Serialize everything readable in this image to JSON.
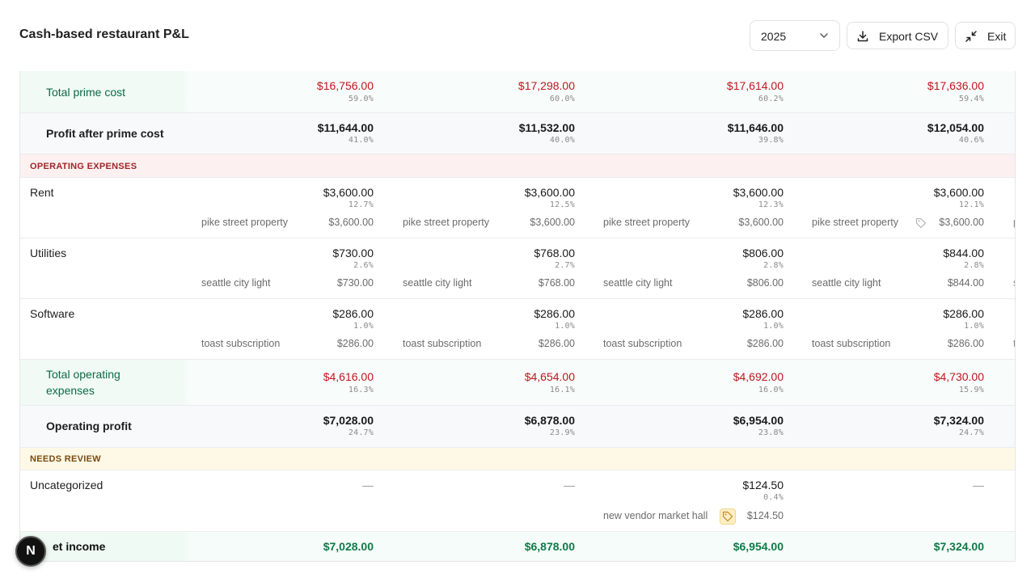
{
  "header": {
    "title": "Cash-based restaurant P&L",
    "year": "2025",
    "export_label": "Export CSV",
    "exit_label": "Exit"
  },
  "rows": {
    "prime": {
      "label": "Total prime cost",
      "cols": [
        {
          "amount": "$16,756.00",
          "pct": "59.0%"
        },
        {
          "amount": "$17,298.00",
          "pct": "60.0%"
        },
        {
          "amount": "$17,614.00",
          "pct": "60.2%"
        },
        {
          "amount": "$17,636.00",
          "pct": "59.4%"
        }
      ]
    },
    "profit_prime": {
      "label": "Profit after prime cost",
      "cols": [
        {
          "amount": "$11,644.00",
          "pct": "41.0%"
        },
        {
          "amount": "$11,532.00",
          "pct": "40.0%"
        },
        {
          "amount": "$11,646.00",
          "pct": "39.8%"
        },
        {
          "amount": "$12,054.00",
          "pct": "40.6%"
        }
      ]
    },
    "opex_header": "OPERATING EXPENSES",
    "rent": {
      "label": "Rent",
      "cols": [
        {
          "amount": "$3,600.00",
          "pct": "12.7%",
          "vendor": "pike street property",
          "vendor_amount": "$3,600.00"
        },
        {
          "amount": "$3,600.00",
          "pct": "12.5%",
          "vendor": "pike street property",
          "vendor_amount": "$3,600.00"
        },
        {
          "amount": "$3,600.00",
          "pct": "12.3%",
          "vendor": "pike street property",
          "vendor_amount": "$3,600.00"
        },
        {
          "amount": "$3,600.00",
          "pct": "12.1%",
          "vendor": "pike street property",
          "vendor_amount": "$3,600.00"
        }
      ],
      "cut_text": "p"
    },
    "utilities": {
      "label": "Utilities",
      "cols": [
        {
          "amount": "$730.00",
          "pct": "2.6%",
          "vendor": "seattle city light",
          "vendor_amount": "$730.00"
        },
        {
          "amount": "$768.00",
          "pct": "2.7%",
          "vendor": "seattle city light",
          "vendor_amount": "$768.00"
        },
        {
          "amount": "$806.00",
          "pct": "2.8%",
          "vendor": "seattle city light",
          "vendor_amount": "$806.00"
        },
        {
          "amount": "$844.00",
          "pct": "2.8%",
          "vendor": "seattle city light",
          "vendor_amount": "$844.00"
        }
      ],
      "cut_text": "s"
    },
    "software": {
      "label": "Software",
      "cols": [
        {
          "amount": "$286.00",
          "pct": "1.0%",
          "vendor": "toast subscription",
          "vendor_amount": "$286.00"
        },
        {
          "amount": "$286.00",
          "pct": "1.0%",
          "vendor": "toast subscription",
          "vendor_amount": "$286.00"
        },
        {
          "amount": "$286.00",
          "pct": "1.0%",
          "vendor": "toast subscription",
          "vendor_amount": "$286.00"
        },
        {
          "amount": "$286.00",
          "pct": "1.0%",
          "vendor": "toast subscription",
          "vendor_amount": "$286.00"
        }
      ],
      "cut_text": "t"
    },
    "total_opex": {
      "label_line1": "Total operating",
      "label_line2": "expenses",
      "cols": [
        {
          "amount": "$4,616.00",
          "pct": "16.3%"
        },
        {
          "amount": "$4,654.00",
          "pct": "16.1%"
        },
        {
          "amount": "$4,692.00",
          "pct": "16.0%"
        },
        {
          "amount": "$4,730.00",
          "pct": "15.9%"
        }
      ]
    },
    "op_profit": {
      "label": "Operating profit",
      "cols": [
        {
          "amount": "$7,028.00",
          "pct": "24.7%"
        },
        {
          "amount": "$6,878.00",
          "pct": "23.9%"
        },
        {
          "amount": "$6,954.00",
          "pct": "23.8%"
        },
        {
          "amount": "$7,324.00",
          "pct": "24.7%"
        }
      ]
    },
    "review_header": "NEEDS REVIEW",
    "uncategorized": {
      "label": "Uncategorized",
      "dash": "—",
      "col3_amount": "$124.50",
      "col3_pct": "0.4%",
      "col3_vendor": "new vendor market hall",
      "col3_vendor_amount": "$124.50"
    },
    "net_income": {
      "label": "et income",
      "cols": [
        "$7,028.00",
        "$6,878.00",
        "$6,954.00",
        "$7,324.00"
      ]
    }
  },
  "avatar_letter": "N"
}
